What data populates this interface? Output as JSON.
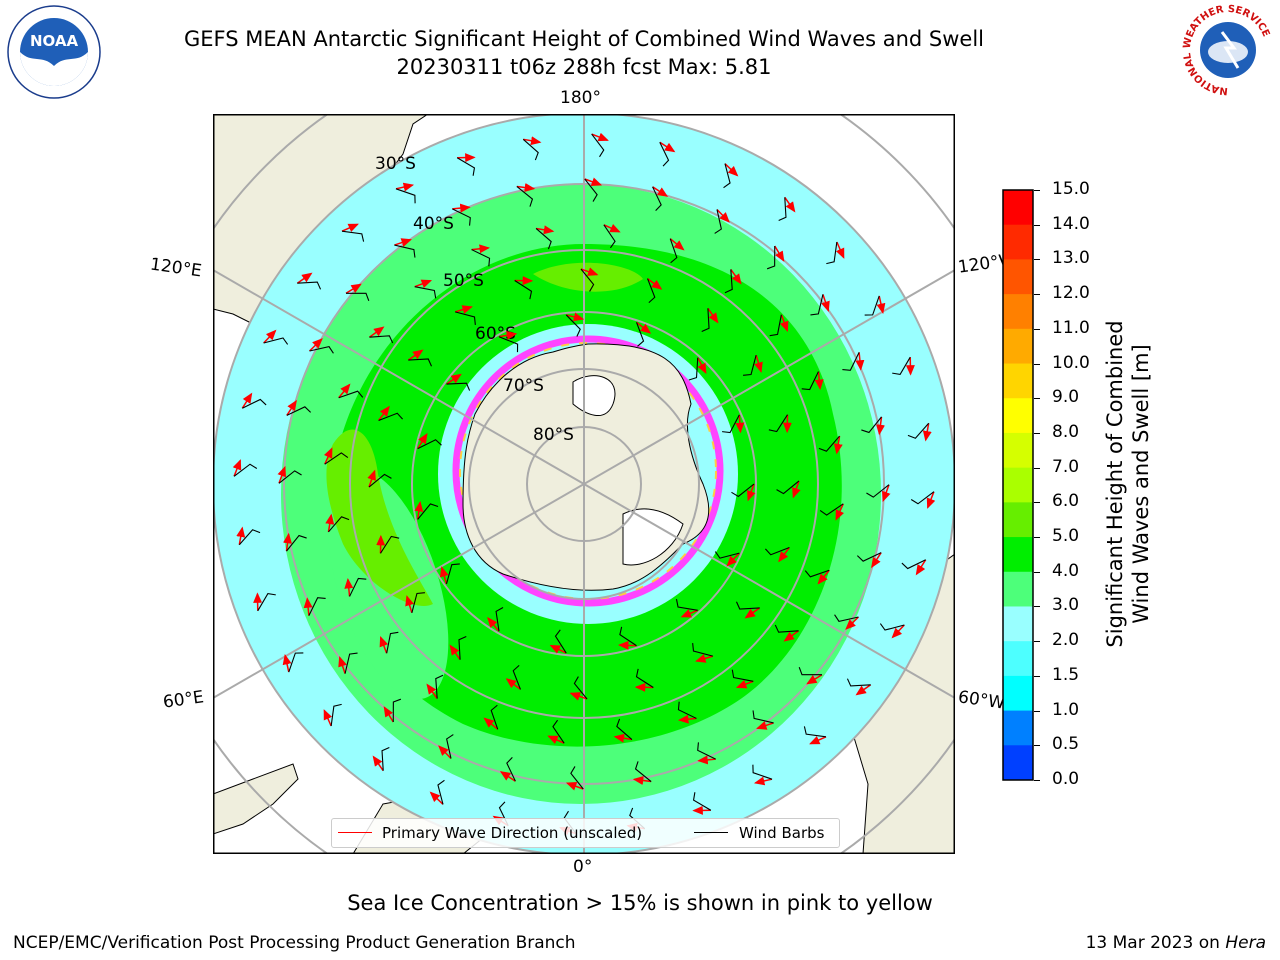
{
  "header": {
    "title_line1": "GEFS MEAN Antarctic Significant Height of Combined Wind Waves and Swell",
    "title_line2": "20230311 t06z 288h fcst   Max: 5.81"
  },
  "logos": {
    "noaa_text": "NOAA",
    "nws_text": "NATIONAL WEATHER SERVICE"
  },
  "map": {
    "projection": "south-polar-stereographic",
    "lat_labels": [
      "30°S",
      "40°S",
      "50°S",
      "60°S",
      "70°S",
      "80°S"
    ],
    "lon_labels": {
      "top": "180°",
      "bottom": "0°",
      "upper_left": "120°E",
      "upper_right": "120°W",
      "lower_left": "60°E",
      "lower_right": "60°W"
    },
    "colors": {
      "ocean_low": "#99ffff",
      "ocean_mid": "#4dff7a",
      "ocean_high": "#00ee00",
      "land": "#efeedd",
      "sea_ice_pink": "#ff44ff",
      "wave_arrow": "#ff0000",
      "wind_barb": "#000000"
    }
  },
  "legend": {
    "wave_direction": "Primary Wave Direction (unscaled)",
    "wind_barbs": "Wind Barbs"
  },
  "colorbar": {
    "label_line1": "Significant Height of Combined",
    "label_line2": "Wind Waves and Swell [m]",
    "ticks": [
      "15.0",
      "14.0",
      "13.0",
      "12.0",
      "11.0",
      "10.0",
      "9.0",
      "8.0",
      "7.0",
      "6.0",
      "5.0",
      "4.0",
      "3.0",
      "2.0",
      "1.5",
      "1.0",
      "0.5",
      "0.0"
    ],
    "colors": [
      "#ff0000",
      "#ff2a00",
      "#ff5500",
      "#ff8000",
      "#ffaa00",
      "#ffd500",
      "#ffff00",
      "#d5ff00",
      "#aaff00",
      "#66ee00",
      "#00ee00",
      "#4dff7a",
      "#99ffff",
      "#4dffff",
      "#00ffff",
      "#0080ff",
      "#0040ff",
      "#0000ff"
    ]
  },
  "notes": {
    "sea_ice": "Sea Ice Concentration > 15% is shown in pink to yellow"
  },
  "footer": {
    "left": "NCEP/EMC/Verification Post Processing Product Generation Branch",
    "right_date": "13 Mar 2023 on",
    "right_machine": "Hera"
  }
}
